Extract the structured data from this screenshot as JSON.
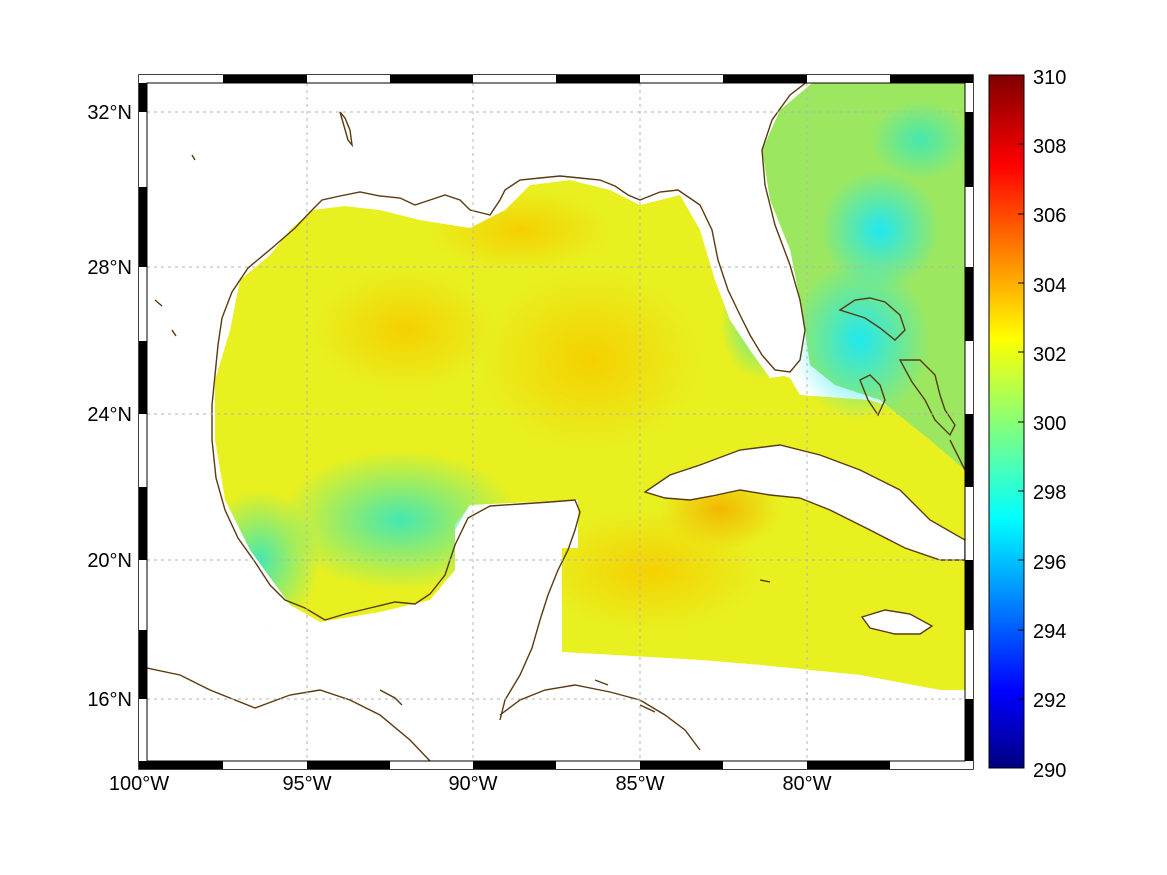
{
  "map": {
    "x_tick_labels": [
      "100°W",
      "95°W",
      "90°W",
      "85°W",
      "80°W"
    ],
    "y_tick_labels": [
      "32°N",
      "28°N",
      "24°N",
      "20°N",
      "16°N"
    ],
    "lon_range": [
      -100,
      -75
    ],
    "lat_range": [
      14.3,
      32.9
    ],
    "x_tick_values": [
      -100,
      -95,
      -90,
      -85,
      -80
    ],
    "y_tick_values": [
      32,
      28,
      24,
      20,
      16
    ],
    "gridlines": true,
    "coastline_color": "#5a3a10"
  },
  "colorbar": {
    "tick_labels": [
      "310",
      "308",
      "306",
      "304",
      "302",
      "300",
      "298",
      "296",
      "294",
      "292",
      "290"
    ],
    "range": [
      290,
      310
    ],
    "colormap": "jet"
  }
}
